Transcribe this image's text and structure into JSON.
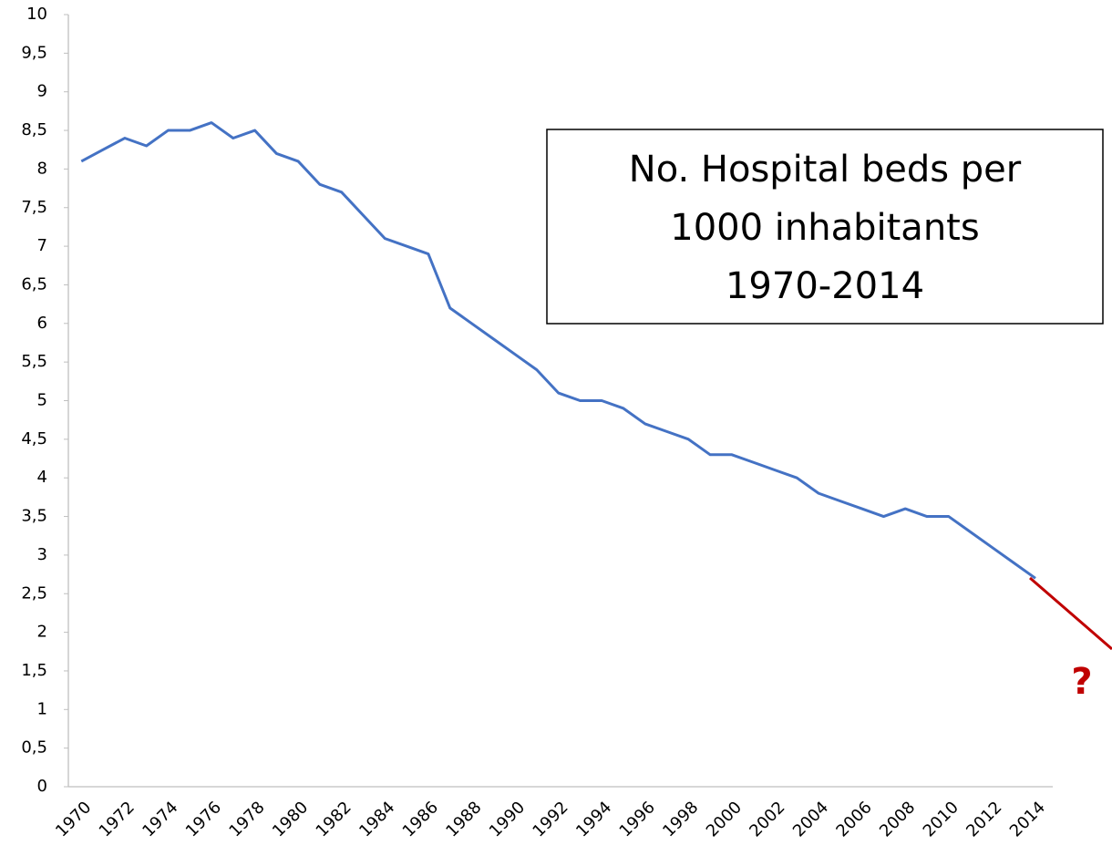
{
  "chart_data": {
    "type": "line",
    "title": [
      "No. Hospital beds per",
      "1000 inhabitants",
      "1970-2014"
    ],
    "x": [
      1970,
      1971,
      1972,
      1973,
      1974,
      1975,
      1976,
      1977,
      1978,
      1979,
      1980,
      1981,
      1982,
      1983,
      1984,
      1985,
      1986,
      1987,
      1988,
      1989,
      1990,
      1991,
      1992,
      1993,
      1994,
      1995,
      1996,
      1997,
      1998,
      1999,
      2000,
      2001,
      2002,
      2003,
      2004,
      2005,
      2006,
      2007,
      2008,
      2009,
      2010,
      2011,
      2012,
      2013,
      2014
    ],
    "series": [
      {
        "color": "#4472c4",
        "values": [
          8.1,
          8.25,
          8.4,
          8.3,
          8.5,
          8.5,
          8.6,
          8.4,
          8.5,
          8.2,
          8.1,
          7.8,
          7.7,
          7.4,
          7.1,
          7.0,
          6.9,
          6.2,
          6.0,
          5.8,
          5.6,
          5.4,
          5.1,
          5.0,
          5.0,
          4.9,
          4.7,
          4.6,
          4.5,
          4.3,
          4.3,
          4.2,
          4.1,
          4.0,
          3.8,
          3.7,
          3.6,
          3.5,
          3.6,
          3.5,
          3.5,
          3.3,
          3.1,
          2.9,
          2.7
        ]
      }
    ],
    "xlim": [
      1969.4,
      2014.8
    ],
    "xticks": [
      1970,
      1972,
      1974,
      1976,
      1978,
      1980,
      1982,
      1984,
      1986,
      1988,
      1990,
      1992,
      1994,
      1996,
      1998,
      2000,
      2002,
      2004,
      2006,
      2008,
      2010,
      2012,
      2014
    ],
    "ylim": [
      0,
      10
    ],
    "yticks": [
      0,
      {
        "value": 0.5,
        "label": "0,5"
      },
      1,
      {
        "value": 1.5,
        "label": "1,5"
      },
      2,
      {
        "value": 2.5,
        "label": "2,5"
      },
      3,
      {
        "value": 3.5,
        "label": "3,5"
      },
      4,
      {
        "value": 4.5,
        "label": "4,5"
      },
      5,
      {
        "value": 5.5,
        "label": "5,5"
      },
      6,
      {
        "value": 6.5,
        "label": "6,5"
      },
      7,
      {
        "value": 7.5,
        "label": "7,5"
      },
      8,
      {
        "value": 8.5,
        "label": "8,5"
      },
      9,
      {
        "value": 9.5,
        "label": "9,5"
      },
      10
    ],
    "annotation": "?",
    "annotation_color": "#c00000",
    "grid": false
  }
}
